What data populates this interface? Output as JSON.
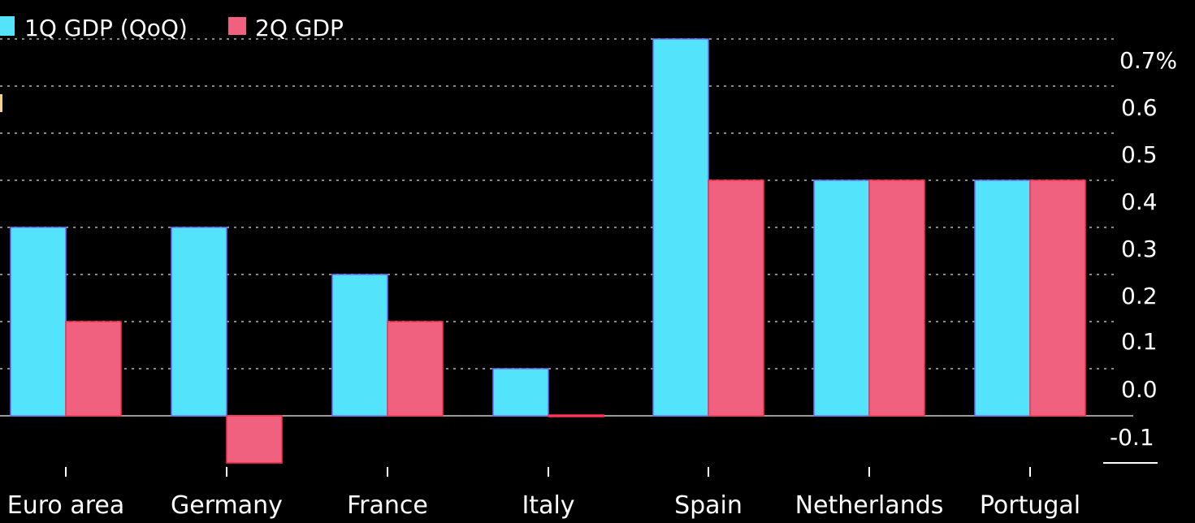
{
  "legend": {
    "series1": "1Q GDP (QoQ)",
    "series2": "2Q GDP"
  },
  "colors": {
    "series1": "#53e3fb",
    "series2": "#f0607f",
    "series2_outline": "#ff2a4a",
    "series1_outline": "#6a6cff",
    "background": "#000000",
    "text": "#ffffff",
    "grid": "#8a8a8a"
  },
  "chart_data": {
    "type": "bar",
    "categories": [
      "Euro area",
      "Germany",
      "France",
      "Italy",
      "Spain",
      "Netherlands",
      "Portugal"
    ],
    "series": [
      {
        "name": "1Q GDP (QoQ)",
        "values": [
          0.4,
          0.4,
          0.3,
          0.1,
          0.8,
          0.5,
          0.5
        ]
      },
      {
        "name": "2Q GDP",
        "values": [
          0.2,
          -0.1,
          0.2,
          0.0,
          0.5,
          0.5,
          0.5
        ]
      }
    ],
    "y_ticks": [
      "0.7%",
      "0.6",
      "0.5",
      "0.4",
      "0.3",
      "0.2",
      "0.1",
      "0.0",
      "-0.1"
    ],
    "ylim": [
      -0.1,
      0.8
    ],
    "y_axis_position": "right",
    "grid": true,
    "legend_placement": "top-left"
  }
}
